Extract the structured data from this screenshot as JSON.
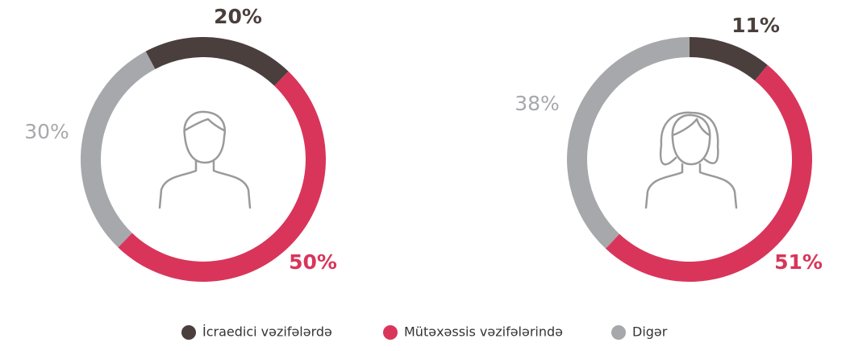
{
  "chart_data": [
    {
      "type": "pie",
      "donut": true,
      "categories": [
        "İcraedici vəzifələrdə",
        "Mütəxəssis vəzifələrində",
        "Digər"
      ],
      "values": [
        20,
        50,
        30
      ],
      "value_labels": [
        "20%",
        "50%",
        "30%"
      ],
      "colors": [
        "#4a3f3d",
        "#d9355a",
        "#a7a8ab"
      ]
    },
    {
      "type": "pie",
      "donut": true,
      "categories": [
        "İcraedici vəzifələrdə",
        "Mütəxəssis vəzifələrində",
        "Digər"
      ],
      "values": [
        11,
        51,
        38
      ],
      "value_labels": [
        "11%",
        "51%",
        "38%"
      ],
      "colors": [
        "#4a3f3d",
        "#d9355a",
        "#a7a8ab"
      ]
    }
  ]
}
